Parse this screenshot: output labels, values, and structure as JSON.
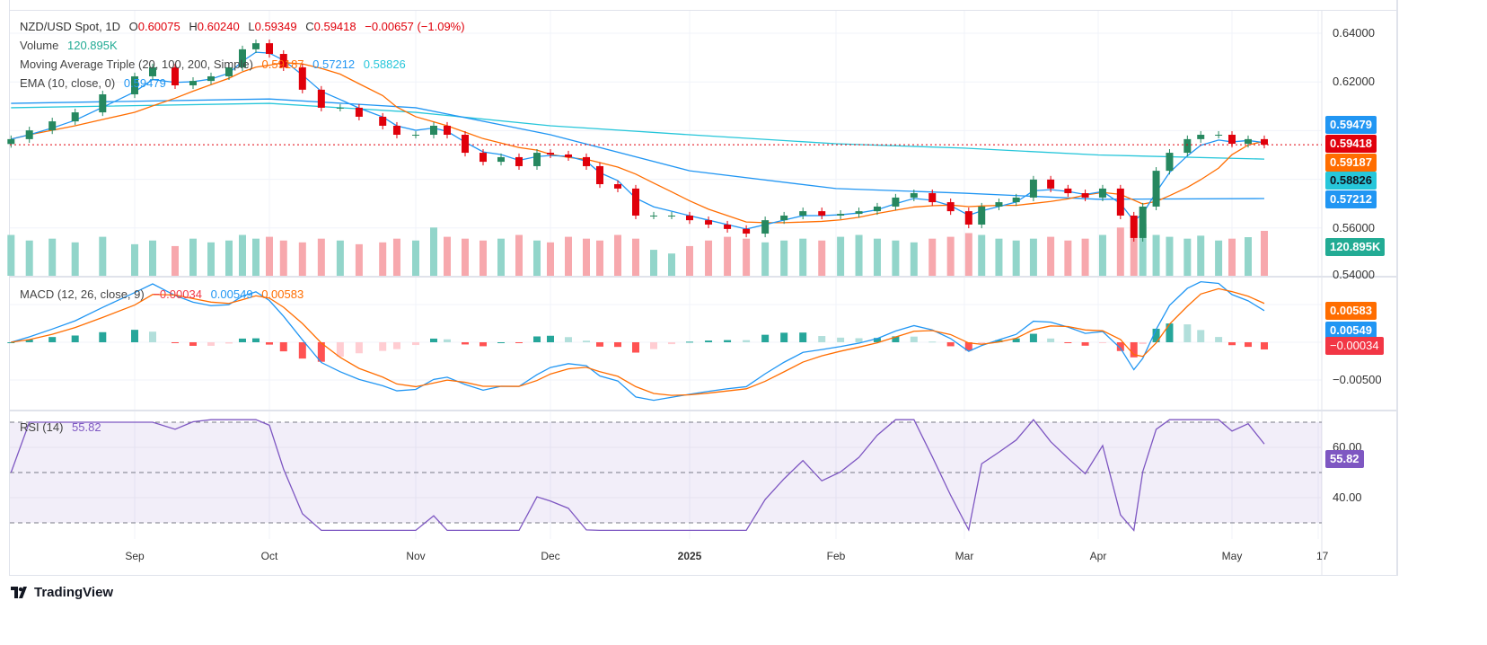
{
  "legend": {
    "symbol": "NZD/USD Spot, 1D",
    "open_label": "O",
    "open": "0.60075",
    "high_label": "H",
    "high": "0.60240",
    "low_label": "L",
    "low": "0.59349",
    "close_label": "C",
    "close": "0.59418",
    "change": "−0.00657 (−1.09%)",
    "volume_label": "Volume",
    "volume": "120.895K",
    "ma_label": "Moving Average Triple (20, 100, 200, Simple)",
    "ma20": "0.59187",
    "ma100": "0.57212",
    "ma200": "0.58826",
    "ema_label": "EMA (10, close, 0)",
    "ema": "0.59479",
    "macd_label": "MACD (12, 26, close, 9)",
    "macd_hist": "−0.00034",
    "macd_line": "0.00549",
    "macd_signal": "0.00583",
    "rsi_label": "RSI (14)",
    "rsi": "55.82"
  },
  "price_axis": {
    "ticks": [
      "0.64000",
      "0.62000",
      "0.56000",
      "0.54000"
    ]
  },
  "macd_axis": {
    "ticks": [
      "−0.00500"
    ]
  },
  "rsi_axis": {
    "ticks": [
      "60.00",
      "40.00"
    ]
  },
  "time_axis": {
    "ticks": [
      "Sep",
      "Oct",
      "Nov",
      "Dec",
      "2025",
      "Feb",
      "Mar",
      "Apr",
      "May",
      "17"
    ]
  },
  "brand": "TradingView",
  "colors": {
    "up": "#26885f",
    "down": "#e0000b",
    "vol_up": "#92d5ca",
    "vol_down": "#f7a8ad",
    "ema": "#2196f3",
    "ma20": "#ff6d00",
    "ma100": "#2196f3",
    "ma200": "#26c6da",
    "macd": "#2196f3",
    "signal": "#ff6d00",
    "rsi": "#7e57c2",
    "last": "#e0000b",
    "volume_badge": "#22ab94"
  },
  "chart_data": {
    "type": "candlestick",
    "title": "NZD/USD Spot, 1D",
    "ylim": [
      0.54,
      0.645
    ],
    "grid": true,
    "dates": [
      "2024-08-05",
      "2024-08-09",
      "2024-08-14",
      "2024-08-19",
      "2024-08-25",
      "2024-09-01",
      "2024-09-05",
      "2024-09-10",
      "2024-09-14",
      "2024-09-18",
      "2024-09-22",
      "2024-09-25",
      "2024-09-28",
      "2024-10-01",
      "2024-10-04",
      "2024-10-08",
      "2024-10-12",
      "2024-10-16",
      "2024-10-20",
      "2024-10-25",
      "2024-10-28",
      "2024-11-01",
      "2024-11-05",
      "2024-11-08",
      "2024-11-12",
      "2024-11-16",
      "2024-11-20",
      "2024-11-24",
      "2024-11-28",
      "2024-12-01",
      "2024-12-05",
      "2024-12-09",
      "2024-12-12",
      "2024-12-16",
      "2024-12-20",
      "2024-12-24",
      "2024-12-28",
      "2025-01-01",
      "2025-01-05",
      "2025-01-09",
      "2025-01-13",
      "2025-01-17",
      "2025-01-21",
      "2025-01-25",
      "2025-01-29",
      "2025-02-02",
      "2025-02-06",
      "2025-02-10",
      "2025-02-14",
      "2025-02-18",
      "2025-02-22",
      "2025-02-26",
      "2025-03-02",
      "2025-03-05",
      "2025-03-09",
      "2025-03-13",
      "2025-03-17",
      "2025-03-21",
      "2025-03-25",
      "2025-03-29",
      "2025-04-02",
      "2025-04-06",
      "2025-04-09",
      "2025-04-11",
      "2025-04-14",
      "2025-04-17",
      "2025-04-21",
      "2025-04-24",
      "2025-04-28",
      "2025-05-01",
      "2025-05-04",
      "2025-05-07"
    ],
    "close": [
      0.5965,
      0.6001,
      0.6038,
      0.6075,
      0.6149,
      0.6223,
      0.626,
      0.6186,
      0.6204,
      0.6223,
      0.626,
      0.6334,
      0.6359,
      0.6315,
      0.626,
      0.6168,
      0.6094,
      0.6094,
      0.6057,
      0.602,
      0.5983,
      0.5983,
      0.602,
      0.5983,
      0.5909,
      0.5872,
      0.5891,
      0.5854,
      0.5909,
      0.5902,
      0.5891,
      0.5854,
      0.578,
      0.5762,
      0.5651,
      0.5651,
      0.5651,
      0.5632,
      0.5614,
      0.5596,
      0.5577,
      0.5632,
      0.5651,
      0.5669,
      0.5651,
      0.5658,
      0.5669,
      0.5688,
      0.5725,
      0.5743,
      0.5706,
      0.5669,
      0.5614,
      0.5688,
      0.5706,
      0.5725,
      0.5799,
      0.5762,
      0.5743,
      0.5725,
      0.5762,
      0.5651,
      0.5559,
      0.5688,
      0.5835,
      0.5909,
      0.5965,
      0.5983,
      0.5983,
      0.5946,
      0.5965,
      0.5942
    ],
    "volume_k": [
      110,
      95,
      100,
      90,
      105,
      85,
      95,
      80,
      100,
      90,
      95,
      110,
      100,
      105,
      95,
      90,
      100,
      95,
      85,
      90,
      100,
      95,
      130,
      105,
      100,
      95,
      100,
      110,
      95,
      90,
      105,
      100,
      95,
      110,
      100,
      70,
      60,
      80,
      95,
      105,
      100,
      90,
      95,
      100,
      95,
      105,
      110,
      100,
      95,
      90,
      100,
      105,
      115,
      110,
      100,
      95,
      100,
      105,
      95,
      100,
      110,
      130,
      150,
      140,
      110,
      105,
      100,
      108,
      95,
      100,
      104,
      121
    ],
    "ma100": {
      "dates": [
        "2024-08-05",
        "2024-10-01",
        "2024-11-01",
        "2024-12-01",
        "2025-01-01",
        "2025-02-01",
        "2025-03-01",
        "2025-04-01",
        "2025-05-07"
      ],
      "values": [
        0.6112,
        0.613,
        0.6094,
        0.5983,
        0.5835,
        0.5762,
        0.5743,
        0.5718,
        0.5721
      ]
    },
    "ma200": {
      "dates": [
        "2024-08-05",
        "2024-10-01",
        "2024-11-01",
        "2024-12-01",
        "2025-01-01",
        "2025-02-01",
        "2025-03-01",
        "2025-04-01",
        "2025-05-07"
      ],
      "values": [
        0.6094,
        0.6112,
        0.6075,
        0.602,
        0.5983,
        0.5946,
        0.5928,
        0.59,
        0.5883
      ]
    }
  }
}
